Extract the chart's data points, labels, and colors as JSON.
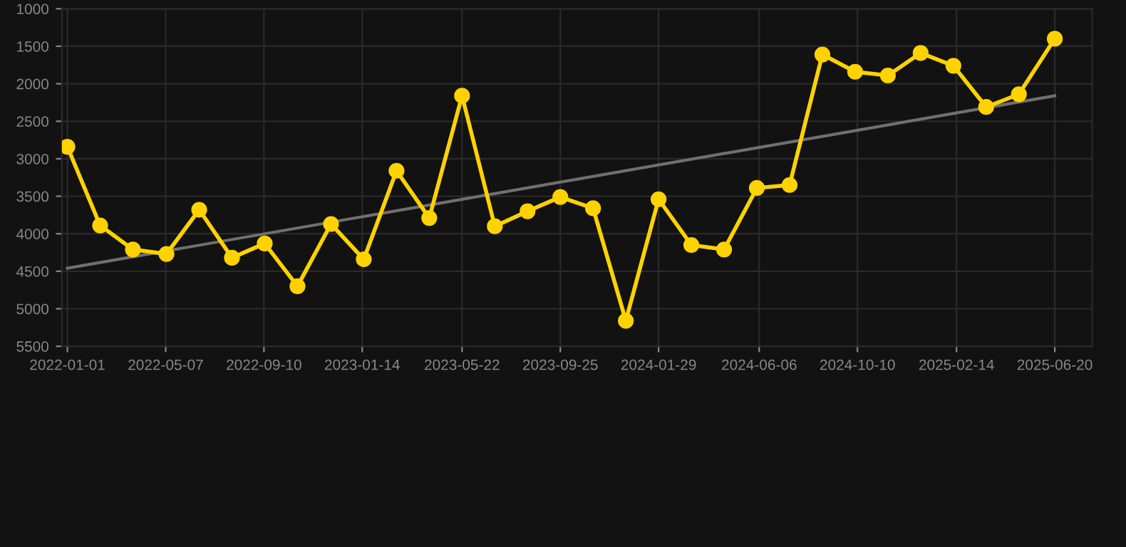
{
  "chart_data": {
    "type": "line",
    "x": [
      "2022-01-01",
      "2022-02-12",
      "2022-03-26",
      "2022-05-08",
      "2022-06-19",
      "2022-07-31",
      "2022-09-11",
      "2022-10-23",
      "2022-12-05",
      "2023-01-16",
      "2023-02-27",
      "2023-04-10",
      "2023-05-22",
      "2023-07-03",
      "2023-08-14",
      "2023-09-25",
      "2023-11-06",
      "2023-12-18",
      "2024-01-29",
      "2024-03-11",
      "2024-04-22",
      "2024-06-03",
      "2024-07-15",
      "2024-08-26",
      "2024-10-07",
      "2024-11-18",
      "2024-12-30",
      "2025-02-10",
      "2025-03-24",
      "2025-05-05",
      "2025-06-20"
    ],
    "series": [
      {
        "color": "#ffd200",
        "marker": "circle",
        "values": [
          2840,
          3890,
          4210,
          4270,
          3680,
          4320,
          4130,
          4700,
          3870,
          4340,
          3160,
          3790,
          2160,
          3900,
          3700,
          3510,
          3660,
          5160,
          3540,
          4150,
          4210,
          3390,
          3350,
          1610,
          1840,
          1890,
          1590,
          1760,
          2310,
          2140,
          1400
        ]
      },
      {
        "color": "#707070",
        "marker": "none",
        "x": [
          "2022-01-01",
          "2025-06-20"
        ],
        "values": [
          4460,
          2160
        ]
      }
    ],
    "xlim": [
      "2021-12-25",
      "2025-08-07"
    ],
    "xticks": [
      {
        "value": "2022-01-01",
        "label": "2022-01-01"
      },
      {
        "value": "2022-05-07",
        "label": "2022-05-07"
      },
      {
        "value": "2022-09-10",
        "label": "2022-09-10"
      },
      {
        "value": "2023-01-14",
        "label": "2023-01-14"
      },
      {
        "value": "2023-05-22",
        "label": "2023-05-22"
      },
      {
        "value": "2023-09-25",
        "label": "2023-09-25"
      },
      {
        "value": "2024-01-29",
        "label": "2024-01-29"
      },
      {
        "value": "2024-06-06",
        "label": "2024-06-06"
      },
      {
        "value": "2024-10-10",
        "label": "2024-10-10"
      },
      {
        "value": "2025-02-14",
        "label": "2025-02-14"
      },
      {
        "value": "2025-06-20",
        "label": "2025-06-20"
      }
    ],
    "ylim": [
      5500,
      1000
    ],
    "yticks": [
      1000,
      1500,
      2000,
      2500,
      3000,
      3500,
      4000,
      4500,
      5000,
      5500
    ],
    "grid": true
  }
}
